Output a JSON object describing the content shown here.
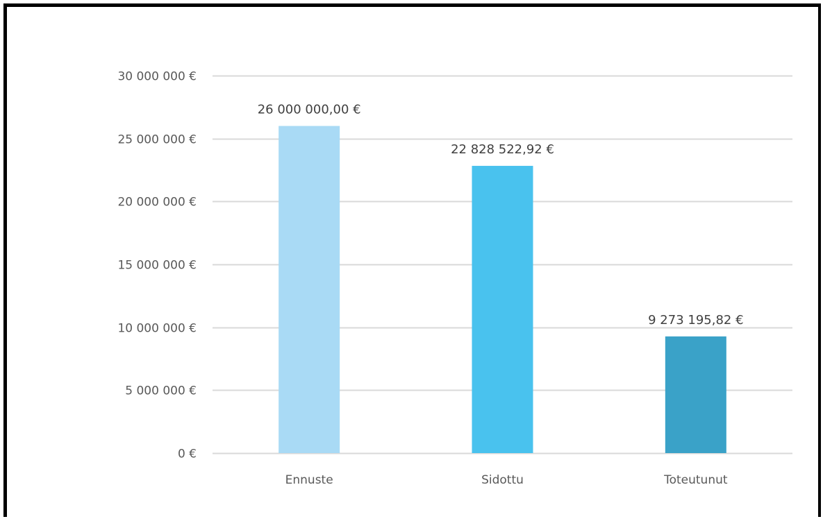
{
  "chart_data": {
    "type": "bar",
    "categories": [
      "Ennuste",
      "Sidottu",
      "Toteutunut"
    ],
    "values": [
      26000000.0,
      22828522.92,
      9273195.82
    ],
    "data_labels": [
      "26 000 000,00 €",
      "22 828 522,92 €",
      "9 273 195,82 €"
    ],
    "colors": [
      "#a9daf5",
      "#49c2ee",
      "#3aa2c8"
    ],
    "ylim": [
      0,
      30000000
    ],
    "yticks": [
      0,
      5000000,
      10000000,
      15000000,
      20000000,
      25000000,
      30000000
    ],
    "ytick_labels": [
      "0 €",
      "5 000 000 €",
      "10 000 000 €",
      "15 000 000 €",
      "20 000 000 €",
      "25 000 000 €",
      "30 000 000 €"
    ],
    "grid": true,
    "gridline_color": "#d9d9d9",
    "legend": "none",
    "title": "",
    "xlabel": "",
    "ylabel": ""
  }
}
